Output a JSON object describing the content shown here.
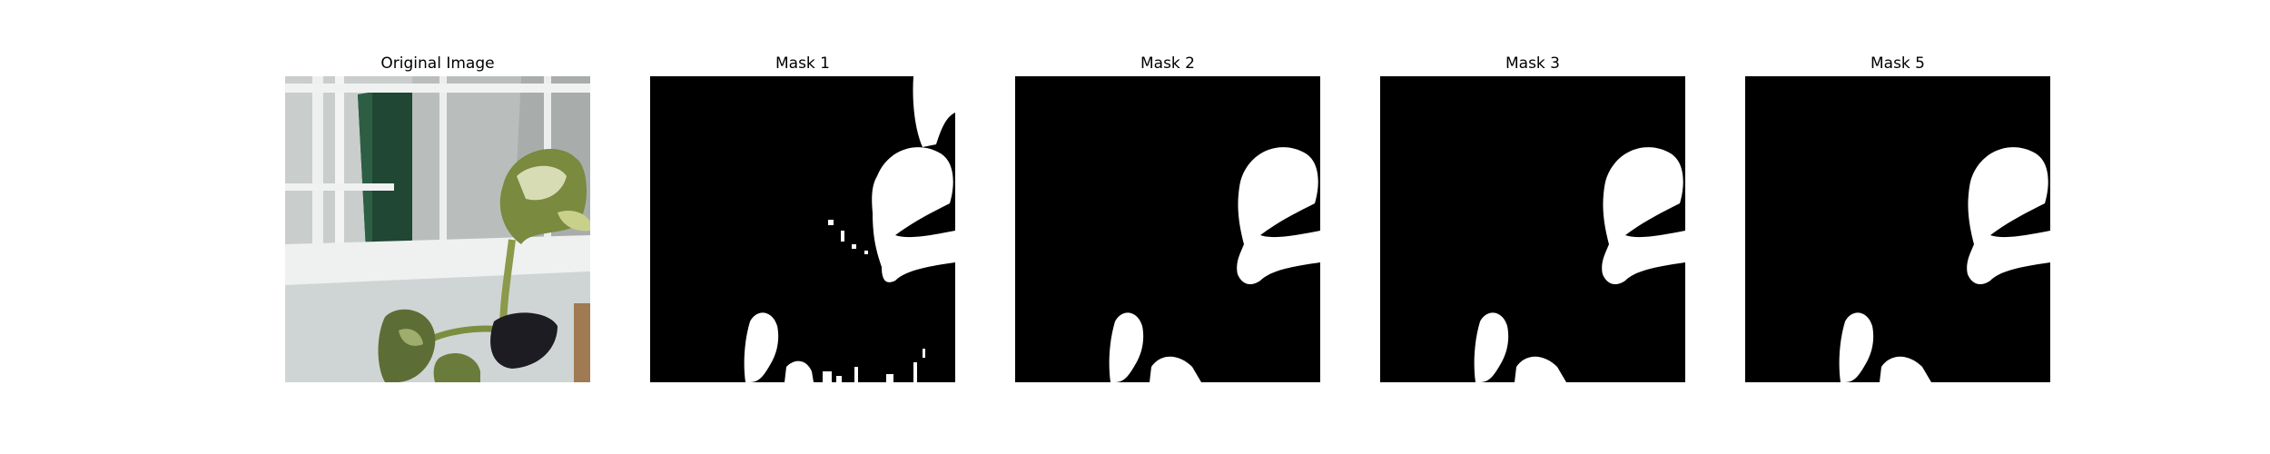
{
  "figure": {
    "panels": [
      {
        "title": "Original Image",
        "kind": "photo",
        "content": "closeup of a variegated plant leaf near a white railing and glass panel"
      },
      {
        "title": "Mask 1",
        "kind": "mask",
        "variant": "noisy"
      },
      {
        "title": "Mask 2",
        "kind": "mask",
        "variant": "clean"
      },
      {
        "title": "Mask 3",
        "kind": "mask",
        "variant": "clean"
      },
      {
        "title": "Mask 5",
        "kind": "mask",
        "variant": "clean"
      }
    ],
    "colors": {
      "background": "#ffffff",
      "mask_background": "#000000",
      "mask_foreground": "#ffffff",
      "photo_wall": "#dfe3e2",
      "photo_glass_dark": "#1f4733",
      "photo_leaf": "#6f7f3c",
      "photo_pot": "#1d1c22"
    }
  }
}
